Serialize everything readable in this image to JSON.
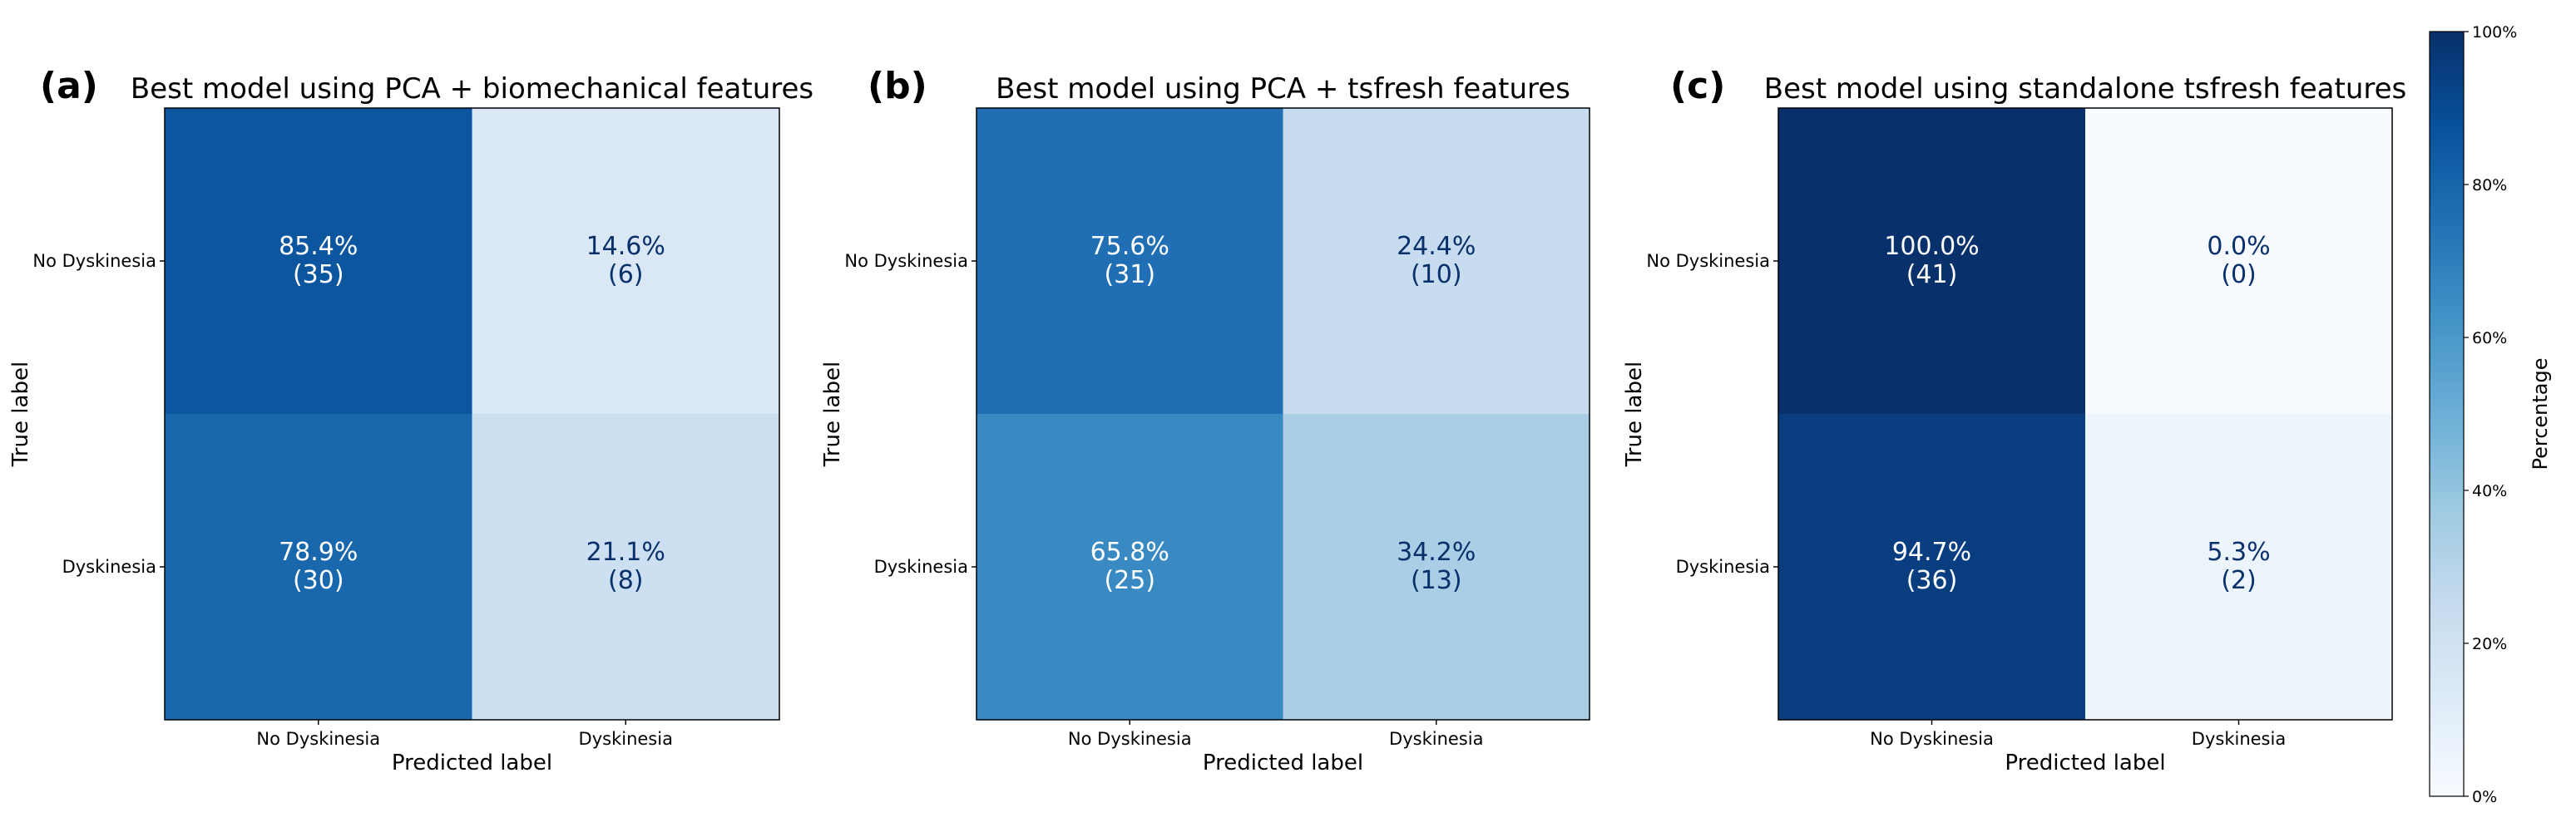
{
  "chart_data": [
    {
      "type": "heatmap",
      "panel": "(a)",
      "title": "Best model using PCA + biomechanical features",
      "xlabel": "Predicted label",
      "ylabel": "True label",
      "rows": [
        "No Dyskinesia",
        "Dyskinesia"
      ],
      "cols": [
        "No Dyskinesia",
        "Dyskinesia"
      ],
      "percent": [
        [
          85.4,
          14.6
        ],
        [
          78.9,
          21.1
        ]
      ],
      "percent_labels": [
        [
          "85.4%",
          "14.6%"
        ],
        [
          "78.9%",
          "21.1%"
        ]
      ],
      "count_labels": [
        [
          "(35)",
          "(6)"
        ],
        [
          "(30)",
          "(8)"
        ]
      ]
    },
    {
      "type": "heatmap",
      "panel": "(b)",
      "title": "Best model using PCA + tsfresh features",
      "xlabel": "Predicted label",
      "ylabel": "True label",
      "rows": [
        "No Dyskinesia",
        "Dyskinesia"
      ],
      "cols": [
        "No Dyskinesia",
        "Dyskinesia"
      ],
      "percent": [
        [
          75.6,
          24.4
        ],
        [
          65.8,
          34.2
        ]
      ],
      "percent_labels": [
        [
          "75.6%",
          "24.4%"
        ],
        [
          "65.8%",
          "34.2%"
        ]
      ],
      "count_labels": [
        [
          "(31)",
          "(10)"
        ],
        [
          "(25)",
          "(13)"
        ]
      ]
    },
    {
      "type": "heatmap",
      "panel": "(c)",
      "title": "Best model using standalone tsfresh features",
      "xlabel": "Predicted label",
      "ylabel": "True label",
      "rows": [
        "No Dyskinesia",
        "Dyskinesia"
      ],
      "cols": [
        "No Dyskinesia",
        "Dyskinesia"
      ],
      "percent": [
        [
          100.0,
          0.0
        ],
        [
          94.7,
          5.3
        ]
      ],
      "percent_labels": [
        [
          "100.0%",
          "0.0%"
        ],
        [
          "94.7%",
          "5.3%"
        ]
      ],
      "count_labels": [
        [
          "(41)",
          "(0)"
        ],
        [
          "(36)",
          "(2)"
        ]
      ]
    }
  ],
  "colorbar": {
    "label": "Percentage",
    "range": [
      0,
      100
    ],
    "ticks": [
      0,
      20,
      40,
      60,
      80,
      100
    ],
    "tick_labels": [
      "0%",
      "20%",
      "40%",
      "60%",
      "80%",
      "100%"
    ],
    "colormap": "Blues"
  }
}
